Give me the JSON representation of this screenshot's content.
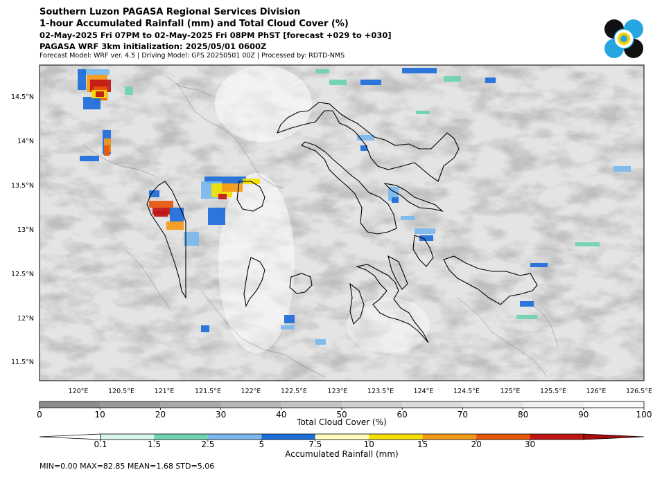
{
  "header": {
    "title1": "Southern Luzon PAGASA Regional Services Division",
    "title2": "1-hour Accumulated Rainfall (mm) and Total Cloud Cover (%)",
    "title3": "02-May-2025 Fri 07PM to 02-May-2025 Fri 08PM PhST [forecast +029 to +030]",
    "title4": "PAGASA WRF 3km initialization: 2025/05/01 0600Z",
    "title5": "Forecast Model: WRF ver. 4.5 | Driving Model: GFS 20250501 00Z | Processed by: RDTD-NMS"
  },
  "map": {
    "lat_labels": [
      "14.5°N",
      "14°N",
      "13.5°N",
      "13°N",
      "12.5°N",
      "12°N",
      "11.5°N"
    ],
    "lon_labels": [
      "120°E",
      "120.5°E",
      "121°E",
      "121.5°E",
      "122°E",
      "122.5°E",
      "123°E",
      "123.5°E",
      "124°E",
      "124.5°E",
      "125°E",
      "125.5°E",
      "126°E",
      "126.5°E"
    ]
  },
  "cloud_colorbar": {
    "title": "Total Cloud Cover (%)",
    "ticks": [
      "0",
      "10",
      "20",
      "30",
      "40",
      "50",
      "60",
      "70",
      "80",
      "90",
      "100"
    ],
    "colors": [
      "#8c8c8c",
      "#9a9a9a",
      "#a8a8a8",
      "#b6b6b6",
      "#c4c4c4",
      "#d0d0d0",
      "#dcdcdc",
      "#e6e6e6",
      "#f0f0f0",
      "#fafafa"
    ]
  },
  "rain_colorbar": {
    "title": "Accumulated Rainfall (mm)",
    "ticks": [
      "0.1",
      "1.5",
      "2.5",
      "5",
      "7.5",
      "10",
      "15",
      "20",
      "30"
    ],
    "colors": [
      "#ffffff",
      "#d6f5ea",
      "#6ed3ae",
      "#7ab8ee",
      "#1c6ddb",
      "#fffcbc",
      "#f6df00",
      "#f39a18",
      "#e8560a",
      "#c01515",
      "#a80d0d"
    ]
  },
  "stats": "MIN=0.00   MAX=82.85   MEAN=1.68   STD=5.06",
  "logo": {
    "name": "PAGASA",
    "colors": [
      "#111111",
      "#26a6e0",
      "#f5d000"
    ]
  }
}
